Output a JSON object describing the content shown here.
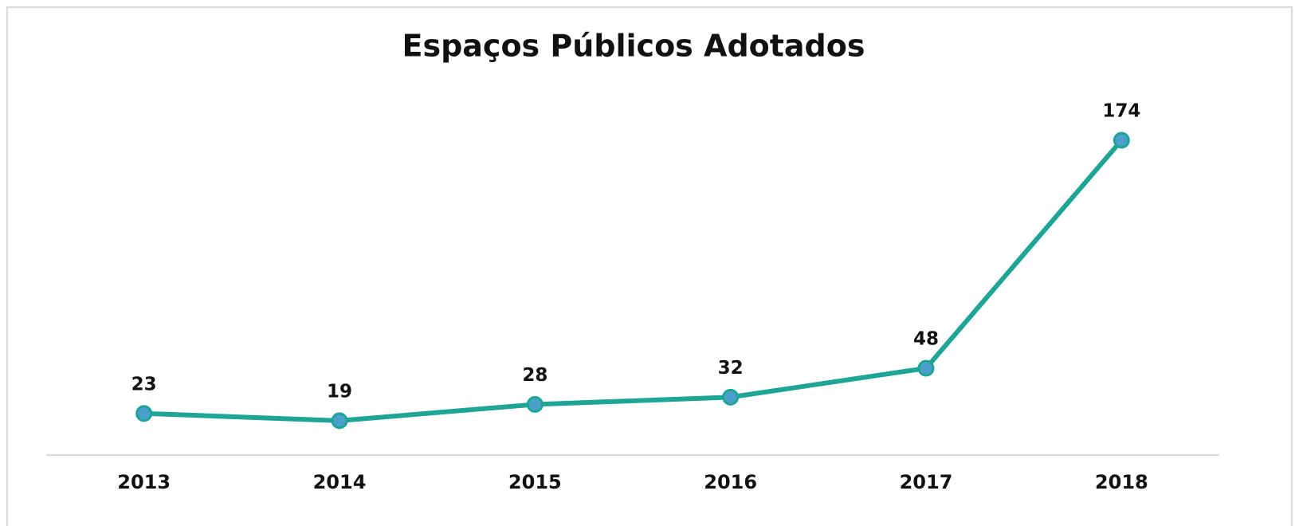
{
  "chart_data": {
    "type": "line",
    "title": "Espaços Públicos Adotados",
    "categories": [
      "2013",
      "2014",
      "2015",
      "2016",
      "2017",
      "2018"
    ],
    "values": [
      23,
      19,
      28,
      32,
      48,
      174
    ],
    "color": "#1fa596",
    "marker_color": "#4a9fcb"
  }
}
